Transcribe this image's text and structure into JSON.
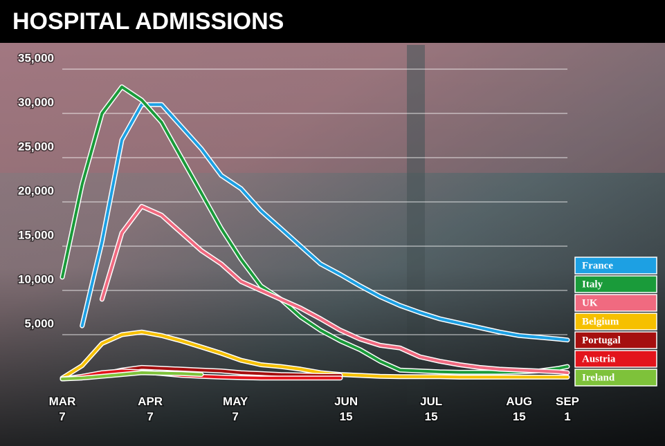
{
  "chart_data": {
    "type": "line",
    "title": "HOSPITAL ADMISSIONS",
    "x": [
      "Mar 7",
      "Mar 14",
      "Mar 21",
      "Mar 28",
      "Apr 4",
      "Apr 11",
      "Apr 18",
      "Apr 25",
      "May 2",
      "May 9",
      "May 16",
      "May 23",
      "May 30",
      "Jun 6",
      "Jun 13",
      "Jun 20",
      "Jun 27",
      "Jul 4",
      "Jul 11",
      "Jul 18",
      "Jul 25",
      "Aug 1",
      "Aug 8",
      "Aug 15",
      "Aug 22",
      "Aug 29",
      "Sep 1"
    ],
    "xlim": [
      "Mar 7",
      "Sep 1"
    ],
    "xticks": [
      {
        "value": "Mar 7",
        "label": [
          "MAR",
          "7"
        ]
      },
      {
        "value": "Apr 7",
        "label": [
          "APR",
          "7"
        ]
      },
      {
        "value": "May 7",
        "label": [
          "MAY",
          "7"
        ]
      },
      {
        "value": "Jun 15",
        "label": [
          "JUN",
          "15"
        ]
      },
      {
        "value": "Jul 15",
        "label": [
          "JUL",
          "15"
        ]
      },
      {
        "value": "Aug 15",
        "label": [
          "AUG",
          "15"
        ]
      },
      {
        "value": "Sep 1",
        "label": [
          "SEP",
          "1"
        ]
      }
    ],
    "ylim": [
      0,
      35000
    ],
    "yticks": [
      {
        "value": 5000,
        "label": "5,000"
      },
      {
        "value": 10000,
        "label": "10,000"
      },
      {
        "value": 15000,
        "label": "15,000"
      },
      {
        "value": 20000,
        "label": "20,000"
      },
      {
        "value": 25000,
        "label": "25,000"
      },
      {
        "value": 30000,
        "label": "30,000"
      },
      {
        "value": 35000,
        "label": "35,000"
      }
    ],
    "grid": true,
    "legend": "right",
    "series": [
      {
        "name": "France",
        "color": "#1da0e3",
        "values": [
          null,
          6000,
          15500,
          27000,
          31000,
          31000,
          28500,
          26000,
          23000,
          21500,
          19000,
          17000,
          15000,
          13000,
          11800,
          10500,
          9300,
          8300,
          7500,
          6800,
          6300,
          5800,
          5300,
          4900,
          4700,
          4500,
          4400
        ]
      },
      {
        "name": "Italy",
        "color": "#1a9b3a",
        "values": [
          11500,
          22000,
          30000,
          33000,
          31500,
          29000,
          25000,
          21000,
          17000,
          13500,
          10500,
          9000,
          7000,
          5500,
          4300,
          3300,
          2000,
          1000,
          900,
          800,
          750,
          750,
          750,
          800,
          900,
          1200,
          1400
        ]
      },
      {
        "name": "UK",
        "color": "#f06a80",
        "values": [
          null,
          null,
          9000,
          16500,
          19500,
          18500,
          16500,
          14500,
          13000,
          11000,
          10000,
          9000,
          8000,
          6800,
          5500,
          4500,
          3800,
          3500,
          2500,
          2000,
          1600,
          1300,
          1100,
          1000,
          900,
          800,
          700
        ]
      },
      {
        "name": "Belgium",
        "color": "#f6c000",
        "values": [
          100,
          1500,
          4000,
          5000,
          5300,
          4900,
          4300,
          3600,
          2900,
          2100,
          1600,
          1400,
          1100,
          700,
          500,
          400,
          300,
          250,
          250,
          250,
          200,
          200,
          200,
          200,
          200,
          200,
          200
        ]
      },
      {
        "name": "Portugal",
        "color": "#a50f0f",
        "values": [
          0,
          200,
          500,
          1000,
          1300,
          1200,
          1100,
          1000,
          900,
          700,
          600,
          500,
          450,
          400,
          400,
          null,
          null,
          null,
          null,
          null,
          null,
          null,
          null,
          null,
          null,
          null,
          null
        ]
      },
      {
        "name": "Austria",
        "color": "#e3141c",
        "values": [
          0,
          300,
          700,
          900,
          800,
          600,
          400,
          300,
          200,
          150,
          100,
          100,
          100,
          100,
          100,
          null,
          null,
          null,
          null,
          null,
          null,
          null,
          null,
          null,
          null,
          null,
          null
        ]
      },
      {
        "name": "Ireland",
        "color": "#7ec23a",
        "values": [
          0,
          100,
          300,
          500,
          700,
          650,
          600,
          500,
          null,
          null,
          null,
          null,
          null,
          null,
          null,
          null,
          null,
          null,
          null,
          null,
          null,
          null,
          null,
          null,
          null,
          null,
          null
        ]
      }
    ]
  }
}
